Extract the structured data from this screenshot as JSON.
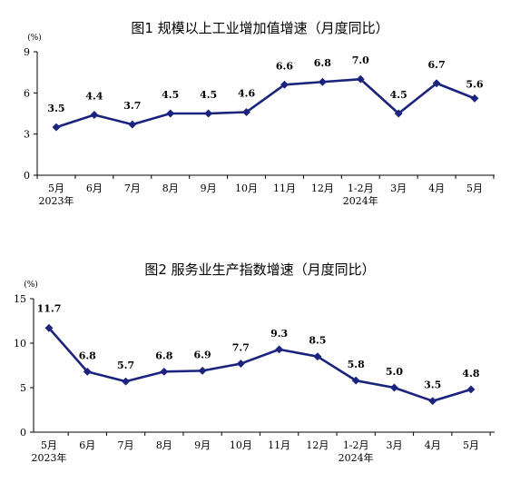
{
  "chart_data": [
    {
      "type": "line",
      "title": "图1   规模以上工业增加值增速（月度同比）",
      "unit": "(%)",
      "categories": [
        "5月",
        "6月",
        "7月",
        "8月",
        "9月",
        "10月",
        "11月",
        "12月",
        "1-2月",
        "3月",
        "4月",
        "5月"
      ],
      "year_labels": [
        {
          "index": 0,
          "text": "2023年"
        },
        {
          "index": 8,
          "text": "2024年"
        }
      ],
      "values": [
        3.5,
        4.4,
        3.7,
        4.5,
        4.5,
        4.6,
        6.6,
        6.8,
        7.0,
        4.5,
        6.7,
        5.6
      ],
      "value_labels": [
        "3.5",
        "4.4",
        "3.7",
        "4.5",
        "4.5",
        "4.6",
        "6.6",
        "6.8",
        "7.0",
        "4.5",
        "6.7",
        "5.6"
      ],
      "ylim": [
        0,
        9
      ],
      "yticks": [
        0,
        3,
        6,
        9
      ],
      "grid": false,
      "line_color": "#1a237e"
    },
    {
      "type": "line",
      "title": "图2   服务业生产指数增速（月度同比）",
      "unit": "(%)",
      "categories": [
        "5月",
        "6月",
        "7月",
        "8月",
        "9月",
        "10月",
        "11月",
        "12月",
        "1-2月",
        "3月",
        "4月",
        "5月"
      ],
      "year_labels": [
        {
          "index": 0,
          "text": "2023年"
        },
        {
          "index": 8,
          "text": "2024年"
        }
      ],
      "values": [
        11.7,
        6.8,
        5.7,
        6.8,
        6.9,
        7.7,
        9.3,
        8.5,
        5.8,
        5.0,
        3.5,
        4.8
      ],
      "value_labels": [
        "11.7",
        "6.8",
        "5.7",
        "6.8",
        "6.9",
        "7.7",
        "9.3",
        "8.5",
        "5.8",
        "5.0",
        "3.5",
        "4.8"
      ],
      "ylim": [
        0,
        15
      ],
      "yticks": [
        0,
        5,
        10,
        15
      ],
      "grid": false,
      "line_color": "#1a237e"
    }
  ]
}
